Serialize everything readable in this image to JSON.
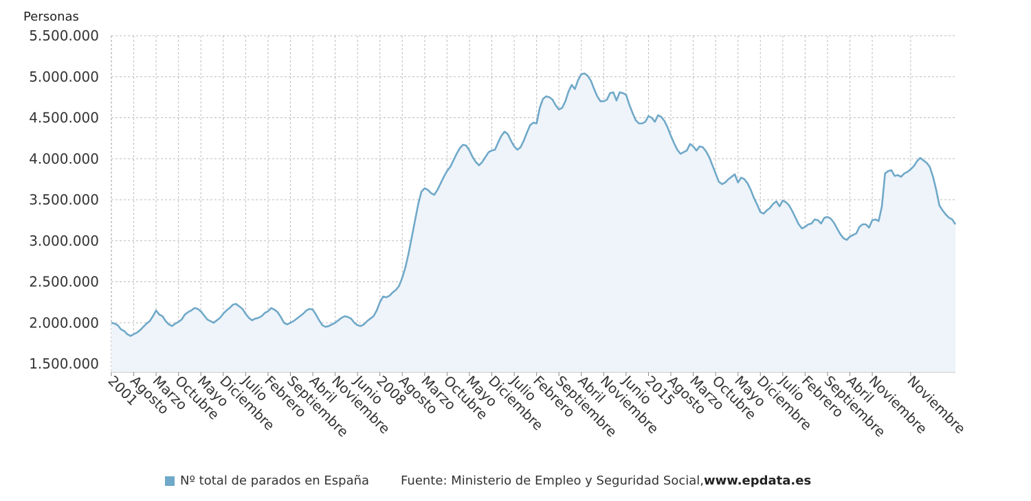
{
  "chart_data": {
    "type": "area",
    "title": "",
    "ylabel": "Personas",
    "xlabel": "",
    "ylim": [
      1400000,
      5500000
    ],
    "yticks": [
      1500000,
      2000000,
      2500000,
      3000000,
      3500000,
      4000000,
      4500000,
      5000000,
      5500000
    ],
    "ytick_labels": [
      "1.500.000",
      "2.000.000",
      "2.500.000",
      "3.000.000",
      "3.500.000",
      "4.000.000",
      "4.500.000",
      "5.000.000",
      "5.500.000"
    ],
    "xticks": [
      {
        "label": "2001",
        "pos": 0
      },
      {
        "label": "Agosto",
        "pos": 7
      },
      {
        "label": "Marzo",
        "pos": 14
      },
      {
        "label": "Octubre",
        "pos": 21
      },
      {
        "label": "Mayo",
        "pos": 28
      },
      {
        "label": "Diciembre",
        "pos": 35
      },
      {
        "label": "Julio",
        "pos": 42
      },
      {
        "label": "Febrero",
        "pos": 49
      },
      {
        "label": "Septiembre",
        "pos": 56
      },
      {
        "label": "Abril",
        "pos": 63
      },
      {
        "label": "Noviembre",
        "pos": 70
      },
      {
        "label": "Junio",
        "pos": 77
      },
      {
        "label": "2008",
        "pos": 84
      },
      {
        "label": "Agosto",
        "pos": 91
      },
      {
        "label": "Marzo",
        "pos": 98
      },
      {
        "label": "Octubre",
        "pos": 105
      },
      {
        "label": "Mayo",
        "pos": 112
      },
      {
        "label": "Diciembre",
        "pos": 119
      },
      {
        "label": "Julio",
        "pos": 126
      },
      {
        "label": "Febrero",
        "pos": 133
      },
      {
        "label": "Septiembre",
        "pos": 140
      },
      {
        "label": "Abril",
        "pos": 147
      },
      {
        "label": "Noviembre",
        "pos": 154
      },
      {
        "label": "Junio",
        "pos": 161
      },
      {
        "label": "2015",
        "pos": 168
      },
      {
        "label": "Agosto",
        "pos": 175
      },
      {
        "label": "Marzo",
        "pos": 182
      },
      {
        "label": "Octubre",
        "pos": 189
      },
      {
        "label": "Mayo",
        "pos": 196
      },
      {
        "label": "Diciembre",
        "pos": 203
      },
      {
        "label": "Julio",
        "pos": 210
      },
      {
        "label": "Febrero",
        "pos": 217
      },
      {
        "label": "Septiembre",
        "pos": 224
      },
      {
        "label": "Abril",
        "pos": 231
      },
      {
        "label": "Noviembre",
        "pos": 238
      },
      {
        "label": "Noviembre",
        "pos": 250
      }
    ],
    "series": [
      {
        "name": "Nº total de parados en España",
        "color": "#6fa8c8",
        "values": [
          2000000,
          1990000,
          1970000,
          1920000,
          1900000,
          1860000,
          1840000,
          1860000,
          1880000,
          1910000,
          1950000,
          1990000,
          2020000,
          2080000,
          2150000,
          2100000,
          2080000,
          2020000,
          1980000,
          1960000,
          1990000,
          2010000,
          2040000,
          2100000,
          2130000,
          2150000,
          2180000,
          2170000,
          2140000,
          2090000,
          2040000,
          2020000,
          2000000,
          2030000,
          2060000,
          2110000,
          2150000,
          2180000,
          2220000,
          2230000,
          2200000,
          2170000,
          2110000,
          2060000,
          2030000,
          2050000,
          2060000,
          2080000,
          2120000,
          2140000,
          2180000,
          2160000,
          2130000,
          2070000,
          2000000,
          1980000,
          2000000,
          2020000,
          2050000,
          2080000,
          2110000,
          2150000,
          2170000,
          2160000,
          2100000,
          2030000,
          1970000,
          1950000,
          1960000,
          1980000,
          2000000,
          2030000,
          2060000,
          2080000,
          2070000,
          2050000,
          2000000,
          1970000,
          1960000,
          1980000,
          2020000,
          2050000,
          2080000,
          2150000,
          2250000,
          2320000,
          2310000,
          2330000,
          2370000,
          2400000,
          2450000,
          2550000,
          2680000,
          2850000,
          3050000,
          3250000,
          3450000,
          3600000,
          3640000,
          3620000,
          3580000,
          3560000,
          3620000,
          3700000,
          3780000,
          3850000,
          3900000,
          3980000,
          4060000,
          4130000,
          4170000,
          4160000,
          4100000,
          4020000,
          3960000,
          3920000,
          3960000,
          4020000,
          4080000,
          4100000,
          4110000,
          4200000,
          4280000,
          4330000,
          4300000,
          4220000,
          4150000,
          4110000,
          4140000,
          4220000,
          4320000,
          4410000,
          4440000,
          4430000,
          4620000,
          4730000,
          4760000,
          4750000,
          4720000,
          4650000,
          4600000,
          4620000,
          4700000,
          4820000,
          4900000,
          4850000,
          4960000,
          5030000,
          5040000,
          5010000,
          4950000,
          4850000,
          4760000,
          4700000,
          4700000,
          4720000,
          4800000,
          4810000,
          4710000,
          4810000,
          4800000,
          4780000,
          4660000,
          4560000,
          4470000,
          4430000,
          4430000,
          4450000,
          4520000,
          4500000,
          4450000,
          4530000,
          4510000,
          4460000,
          4380000,
          4280000,
          4190000,
          4110000,
          4060000,
          4080000,
          4100000,
          4180000,
          4150000,
          4100000,
          4150000,
          4140000,
          4090000,
          4020000,
          3920000,
          3820000,
          3720000,
          3690000,
          3710000,
          3750000,
          3780000,
          3810000,
          3710000,
          3770000,
          3750000,
          3700000,
          3620000,
          3520000,
          3440000,
          3350000,
          3330000,
          3370000,
          3400000,
          3450000,
          3480000,
          3420000,
          3490000,
          3470000,
          3430000,
          3360000,
          3280000,
          3200000,
          3150000,
          3170000,
          3200000,
          3210000,
          3260000,
          3250000,
          3210000,
          3280000,
          3290000,
          3270000,
          3220000,
          3150000,
          3080000,
          3030000,
          3010000,
          3050000,
          3070000,
          3090000,
          3170000,
          3200000,
          3200000,
          3160000,
          3250000,
          3260000,
          3240000,
          3420000,
          3820000,
          3850000,
          3860000,
          3790000,
          3800000,
          3780000,
          3820000,
          3840000,
          3870000,
          3910000,
          3970000,
          4010000,
          3980000,
          3950000,
          3900000,
          3780000,
          3620000,
          3430000,
          3370000,
          3320000,
          3280000,
          3260000,
          3200000
        ]
      }
    ],
    "legend": {
      "series_label": "Nº total de parados en España",
      "source_prefix": "Fuente: Ministerio de Empleo y Seguridad Social, ",
      "source_site": "www.epdata.es"
    },
    "grid": true,
    "legend_position": "bottom-center"
  }
}
